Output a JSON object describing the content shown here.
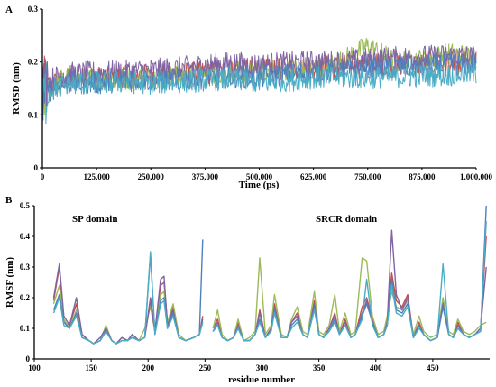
{
  "colors": {
    "red": "#c0504d",
    "green": "#9bbb59",
    "purple": "#8064a2",
    "cyan": "#4bacc6",
    "blue": "#4f81bd"
  },
  "chart_data": [
    {
      "panel": "A",
      "type": "line",
      "title": "",
      "xlabel": "Time (ps)",
      "ylabel": "RMSD (nm)",
      "xlim": [
        0,
        1000000
      ],
      "ylim": [
        0,
        0.3
      ],
      "x_ticks": [
        0,
        125000,
        250000,
        375000,
        500000,
        625000,
        750000,
        875000,
        1000000
      ],
      "x_tick_labels": [
        "0",
        "125,000",
        "250,000",
        "375,000",
        "500,000",
        "625,000",
        "750,000",
        "875,000",
        "1,000,000"
      ],
      "y_ticks": [
        0,
        0.1,
        0.2,
        0.3
      ],
      "y_tick_labels": [
        "0",
        "0.1",
        "0.2",
        "0.3"
      ],
      "x": [
        0,
        25000,
        62500,
        125000,
        187500,
        250000,
        312500,
        375000,
        437500,
        500000,
        562500,
        625000,
        687500,
        750000,
        812500,
        875000,
        937500,
        1000000
      ],
      "series": [
        {
          "color": "red",
          "values": [
            0.15,
            0.16,
            0.168,
            0.17,
            0.172,
            0.175,
            0.178,
            0.18,
            0.182,
            0.184,
            0.186,
            0.19,
            0.192,
            0.194,
            0.195,
            0.196,
            0.198,
            0.198
          ]
        },
        {
          "color": "green",
          "values": [
            0.14,
            0.16,
            0.17,
            0.165,
            0.168,
            0.17,
            0.172,
            0.175,
            0.18,
            0.18,
            0.185,
            0.19,
            0.2,
            0.23,
            0.2,
            0.205,
            0.215,
            0.21
          ]
        },
        {
          "color": "purple",
          "values": [
            0.155,
            0.17,
            0.178,
            0.18,
            0.182,
            0.185,
            0.188,
            0.195,
            0.198,
            0.195,
            0.198,
            0.2,
            0.2,
            0.205,
            0.208,
            0.21,
            0.212,
            0.21
          ]
        },
        {
          "color": "blue",
          "values": [
            0.14,
            0.15,
            0.16,
            0.16,
            0.165,
            0.165,
            0.168,
            0.17,
            0.172,
            0.172,
            0.175,
            0.18,
            0.182,
            0.188,
            0.19,
            0.192,
            0.195,
            0.195
          ]
        },
        {
          "color": "cyan",
          "values": [
            0.13,
            0.15,
            0.158,
            0.16,
            0.162,
            0.16,
            0.162,
            0.165,
            0.168,
            0.16,
            0.165,
            0.17,
            0.172,
            0.17,
            0.172,
            0.174,
            0.176,
            0.178
          ]
        }
      ]
    },
    {
      "panel": "B",
      "type": "line",
      "title": "",
      "xlabel": "residue number",
      "ylabel": "RMSF (nm)",
      "xlim": [
        100,
        500
      ],
      "ylim": [
        0,
        0.5
      ],
      "x_ticks": [
        100,
        150,
        200,
        250,
        300,
        350,
        400,
        450
      ],
      "x_tick_labels": [
        "100",
        "150",
        "200",
        "250",
        "300",
        "350",
        "400",
        "450"
      ],
      "y_ticks": [
        0,
        0.1,
        0.2,
        0.3,
        0.4,
        0.5
      ],
      "y_tick_labels": [
        "0",
        "0.1",
        "0.2",
        "0.3",
        "0.4",
        "0.5"
      ],
      "annotations": [
        "SP domain",
        "SRCR domain"
      ],
      "segments": [
        [
          117,
          248
        ],
        [
          257,
          497
        ]
      ],
      "x": [
        117,
        122,
        126,
        131,
        137,
        142,
        148,
        152,
        158,
        163,
        168,
        172,
        177,
        182,
        186,
        192,
        197,
        202,
        206,
        211,
        214,
        217,
        222,
        227,
        233,
        240,
        245,
        248,
        257,
        261,
        265,
        270,
        275,
        279,
        284,
        289,
        294,
        298,
        303,
        308,
        311,
        317,
        322,
        326,
        331,
        336,
        340,
        346,
        350,
        354,
        359,
        364,
        368,
        373,
        378,
        382,
        388,
        392,
        397,
        402,
        407,
        410,
        414,
        418,
        423,
        428,
        433,
        438,
        442,
        448,
        454,
        459,
        464,
        468,
        472,
        477,
        482,
        487,
        492,
        497
      ],
      "series": [
        {
          "color": "red",
          "values": [
            0.19,
            0.3,
            0.12,
            0.11,
            0.18,
            0.08,
            0.06,
            0.05,
            0.06,
            0.1,
            0.06,
            0.05,
            0.07,
            0.06,
            0.08,
            0.06,
            0.07,
            0.2,
            0.09,
            0.24,
            0.25,
            0.12,
            0.17,
            0.07,
            0.06,
            0.07,
            0.08,
            0.14,
            0.1,
            0.13,
            0.07,
            0.06,
            0.07,
            0.12,
            0.06,
            0.06,
            0.08,
            0.16,
            0.07,
            0.1,
            0.18,
            0.07,
            0.07,
            0.12,
            0.15,
            0.08,
            0.07,
            0.19,
            0.08,
            0.07,
            0.1,
            0.15,
            0.08,
            0.13,
            0.07,
            0.08,
            0.17,
            0.2,
            0.13,
            0.07,
            0.08,
            0.13,
            0.28,
            0.19,
            0.17,
            0.21,
            0.07,
            0.12,
            0.08,
            0.06,
            0.07,
            0.19,
            0.08,
            0.07,
            0.12,
            0.08,
            0.07,
            0.08,
            0.1,
            0.4
          ]
        },
        {
          "color": "green",
          "values": [
            0.18,
            0.24,
            0.13,
            0.1,
            0.16,
            0.07,
            0.06,
            0.05,
            0.06,
            0.11,
            0.06,
            0.05,
            0.07,
            0.06,
            0.07,
            0.06,
            0.1,
            0.17,
            0.09,
            0.21,
            0.22,
            0.12,
            0.18,
            0.08,
            0.06,
            0.07,
            0.08,
            0.12,
            0.1,
            0.16,
            0.08,
            0.06,
            0.07,
            0.13,
            0.06,
            0.07,
            0.09,
            0.33,
            0.08,
            0.11,
            0.21,
            0.08,
            0.07,
            0.13,
            0.17,
            0.09,
            0.08,
            0.22,
            0.09,
            0.08,
            0.11,
            0.21,
            0.09,
            0.15,
            0.08,
            0.09,
            0.33,
            0.32,
            0.14,
            0.08,
            0.09,
            0.14,
            0.22,
            0.17,
            0.16,
            0.19,
            0.08,
            0.14,
            0.09,
            0.07,
            0.08,
            0.2,
            0.09,
            0.08,
            0.13,
            0.09,
            0.08,
            0.09,
            0.11,
            0.12
          ]
        },
        {
          "color": "purple",
          "values": [
            0.2,
            0.31,
            0.14,
            0.11,
            0.2,
            0.08,
            0.06,
            0.05,
            0.07,
            0.1,
            0.06,
            0.05,
            0.07,
            0.06,
            0.08,
            0.06,
            0.07,
            0.19,
            0.09,
            0.26,
            0.27,
            0.11,
            0.16,
            0.07,
            0.06,
            0.07,
            0.08,
            0.13,
            0.09,
            0.12,
            0.07,
            0.06,
            0.07,
            0.11,
            0.06,
            0.06,
            0.08,
            0.15,
            0.07,
            0.1,
            0.17,
            0.07,
            0.07,
            0.12,
            0.14,
            0.08,
            0.07,
            0.18,
            0.08,
            0.07,
            0.1,
            0.14,
            0.08,
            0.12,
            0.07,
            0.08,
            0.15,
            0.19,
            0.12,
            0.07,
            0.08,
            0.12,
            0.42,
            0.21,
            0.16,
            0.2,
            0.07,
            0.11,
            0.08,
            0.06,
            0.07,
            0.18,
            0.08,
            0.07,
            0.11,
            0.08,
            0.07,
            0.08,
            0.1,
            0.3
          ]
        },
        {
          "color": "blue",
          "values": [
            0.16,
            0.21,
            0.12,
            0.1,
            0.15,
            0.07,
            0.06,
            0.05,
            0.06,
            0.09,
            0.06,
            0.05,
            0.06,
            0.06,
            0.07,
            0.06,
            0.07,
            0.34,
            0.08,
            0.19,
            0.2,
            0.1,
            0.15,
            0.07,
            0.06,
            0.07,
            0.08,
            0.39,
            0.09,
            0.11,
            0.07,
            0.06,
            0.07,
            0.1,
            0.06,
            0.06,
            0.08,
            0.13,
            0.07,
            0.09,
            0.16,
            0.07,
            0.07,
            0.11,
            0.13,
            0.08,
            0.07,
            0.17,
            0.08,
            0.07,
            0.09,
            0.13,
            0.08,
            0.11,
            0.07,
            0.08,
            0.14,
            0.18,
            0.12,
            0.07,
            0.08,
            0.11,
            0.26,
            0.16,
            0.15,
            0.18,
            0.07,
            0.11,
            0.08,
            0.06,
            0.07,
            0.17,
            0.08,
            0.07,
            0.1,
            0.08,
            0.07,
            0.08,
            0.09,
            0.5
          ]
        },
        {
          "color": "cyan",
          "values": [
            0.15,
            0.2,
            0.11,
            0.1,
            0.14,
            0.07,
            0.06,
            0.05,
            0.06,
            0.09,
            0.06,
            0.05,
            0.06,
            0.06,
            0.07,
            0.06,
            0.07,
            0.35,
            0.08,
            0.18,
            0.19,
            0.1,
            0.14,
            0.07,
            0.06,
            0.07,
            0.08,
            0.12,
            0.09,
            0.11,
            0.07,
            0.06,
            0.07,
            0.1,
            0.06,
            0.06,
            0.08,
            0.12,
            0.07,
            0.09,
            0.15,
            0.07,
            0.07,
            0.1,
            0.12,
            0.08,
            0.07,
            0.16,
            0.08,
            0.07,
            0.09,
            0.12,
            0.08,
            0.11,
            0.07,
            0.08,
            0.13,
            0.26,
            0.11,
            0.07,
            0.08,
            0.11,
            0.24,
            0.15,
            0.14,
            0.17,
            0.07,
            0.1,
            0.08,
            0.06,
            0.07,
            0.31,
            0.08,
            0.07,
            0.1,
            0.08,
            0.07,
            0.08,
            0.09,
            0.45
          ]
        }
      ]
    }
  ]
}
